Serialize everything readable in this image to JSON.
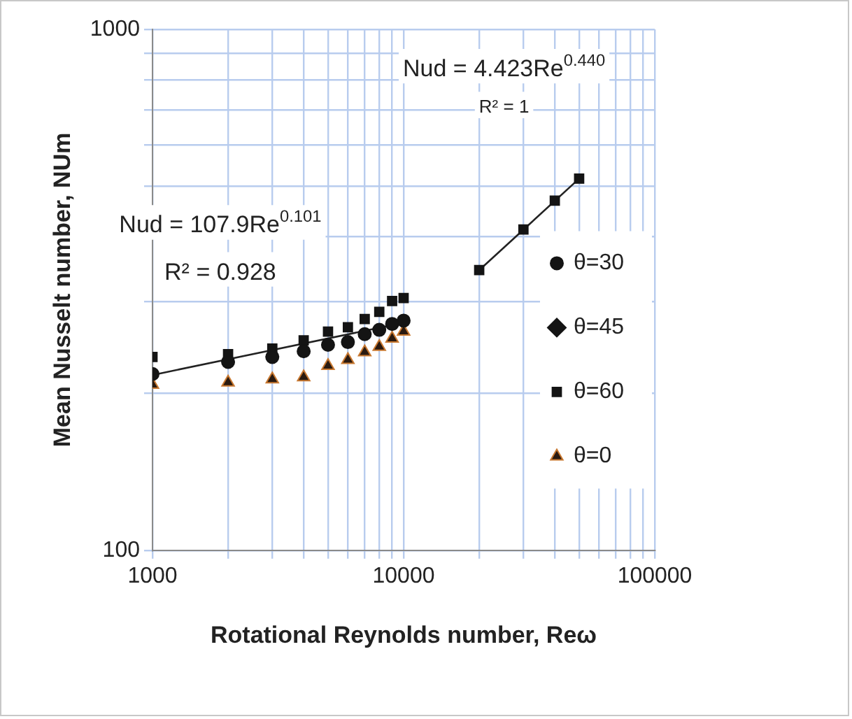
{
  "chart_data": {
    "type": "scatter",
    "xlabel": "Rotational Reynolds number, Reω",
    "ylabel": "Mean Nusselt number, NUm",
    "log": "xy",
    "xlim": [
      1000,
      100000
    ],
    "xticks": [
      1000,
      {
        "value": 2000,
        "label": null
      },
      {
        "value": 3000,
        "label": null
      },
      {
        "value": 4000,
        "label": null
      },
      {
        "value": 5000,
        "label": null
      },
      {
        "value": 6000,
        "label": null
      },
      {
        "value": 7000,
        "label": null
      },
      {
        "value": 8000,
        "label": null
      },
      {
        "value": 9000,
        "label": null
      },
      10000,
      {
        "value": 20000,
        "label": null
      },
      {
        "value": 30000,
        "label": null
      },
      {
        "value": 40000,
        "label": null
      },
      {
        "value": 50000,
        "label": null
      },
      {
        "value": 60000,
        "label": null
      },
      {
        "value": 70000,
        "label": null
      },
      {
        "value": 80000,
        "label": null
      },
      {
        "value": 90000,
        "label": null
      },
      100000
    ],
    "ylim": [
      100,
      1000
    ],
    "yticks": [
      100,
      {
        "value": 200,
        "label": null
      },
      {
        "value": 300,
        "label": null
      },
      {
        "value": 400,
        "label": null
      },
      {
        "value": 500,
        "label": null
      },
      {
        "value": 600,
        "label": null
      },
      {
        "value": 700,
        "label": null
      },
      {
        "value": 800,
        "label": null
      },
      {
        "value": 900,
        "label": null
      },
      1000
    ],
    "grid": true,
    "legend": "right",
    "x": [
      1000,
      2000,
      3000,
      4000,
      5000,
      6000,
      7000,
      8000,
      9000,
      10000,
      20000,
      30000,
      40000,
      50000
    ],
    "series": [
      {
        "name": "θ=30",
        "color": "#141414",
        "marker": "circle",
        "values": [
          218,
          230,
          235,
          241,
          248,
          251,
          260,
          265,
          272,
          276,
          null,
          null,
          null,
          null
        ]
      },
      {
        "name": "θ=45",
        "color": "#141414",
        "marker": "diamond",
        "values": [
          null,
          null,
          null,
          null,
          null,
          null,
          null,
          null,
          null,
          null,
          null,
          null,
          null,
          null
        ]
      },
      {
        "name": "θ=60",
        "color": "#141414",
        "marker": "square",
        "values": [
          235,
          238,
          244,
          253,
          263,
          268,
          278,
          287,
          301,
          305,
          345,
          413,
          469,
          517
        ]
      },
      {
        "name": "θ=0",
        "color": "#2a1a10",
        "marker": "triangle",
        "values": [
          208,
          210,
          213,
          215,
          226,
          232,
          240,
          246,
          255,
          263,
          null,
          null,
          null,
          null
        ]
      },
      {
        "type": "line",
        "color": "#222222",
        "marker": "none",
        "x": [
          1000,
          10000
        ],
        "values": [
          217,
          273.5
        ]
      },
      {
        "type": "line",
        "color": "#222222",
        "marker": "none",
        "x": [
          20000,
          50000
        ],
        "values": [
          345,
          517
        ]
      }
    ],
    "annotations": [
      "Nud = 4.423Re$^{0.440}$",
      "R² = 1",
      "Nud = 107.9Re$^{0.101}$",
      "R² = 0.928"
    ]
  }
}
